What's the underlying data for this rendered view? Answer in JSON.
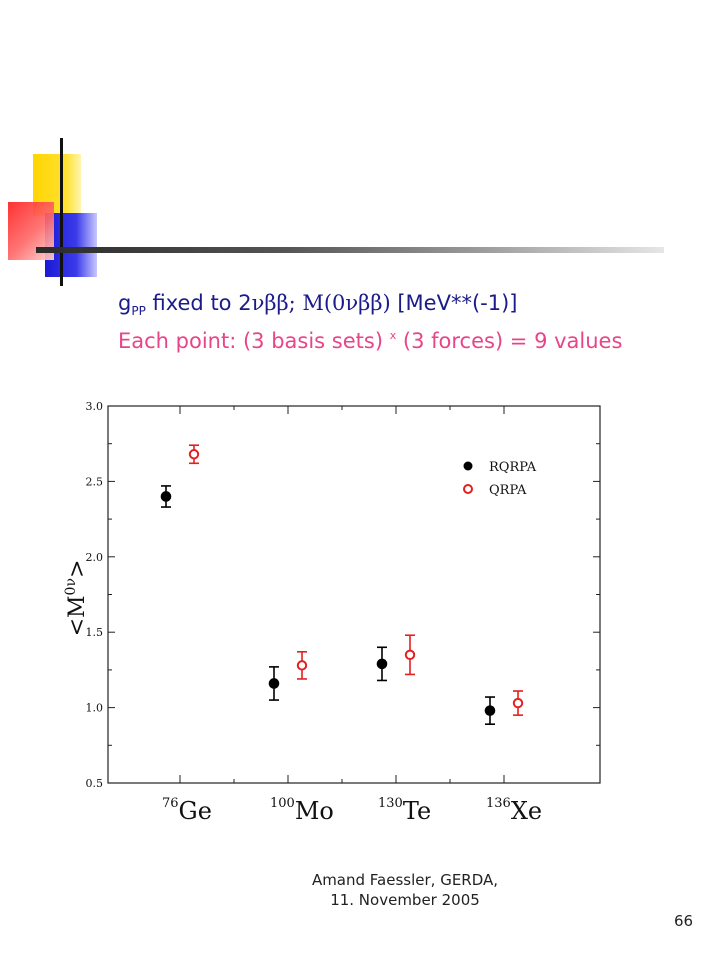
{
  "slide": {
    "line1": {
      "g": "g",
      "sub": "PP",
      "mid": " fixed to 2",
      "greek1": "νββ;  M(0νββ)",
      "tail": " [MeV**(-1)]"
    },
    "line2": {
      "a": "Each point: (3 basis sets) ",
      "sup": "x",
      "b": " (3 forces) = 9 values"
    },
    "footer": "Amand Faessler, GERDA, 11. November 2005",
    "page_number": "66",
    "colors": {
      "line1": "#1b1b8a",
      "line2": "#e8448a",
      "rqrpa": "#000000",
      "qrpa": "#e41f1f"
    }
  },
  "chart_data": {
    "type": "scatter",
    "title": "",
    "ylabel": "<M0ν>",
    "ylabel_parts": {
      "base": "<M",
      "sup": "0ν",
      "close": ">"
    },
    "xlabel": "",
    "ylim": [
      0.5,
      3.0
    ],
    "yticks": [
      "0.5",
      "1.0",
      "1.5",
      "2.0",
      "2.5",
      "3.0"
    ],
    "categories": [
      {
        "sup": "76",
        "name": "Ge"
      },
      {
        "sup": "100",
        "name": "Mo"
      },
      {
        "sup": "130",
        "name": "Te"
      },
      {
        "sup": "136",
        "name": "Xe"
      }
    ],
    "legend_position": "top-right",
    "series": [
      {
        "name": "RQRPA",
        "marker": "filled-circle",
        "color": "#000000",
        "values": [
          2.4,
          1.16,
          1.29,
          0.98
        ],
        "err": [
          0.07,
          0.11,
          0.11,
          0.09
        ]
      },
      {
        "name": "QRPA",
        "marker": "open-circle",
        "color": "#e41f1f",
        "values": [
          2.68,
          1.28,
          1.35,
          1.03
        ],
        "err": [
          0.06,
          0.09,
          0.13,
          0.08
        ]
      }
    ]
  }
}
